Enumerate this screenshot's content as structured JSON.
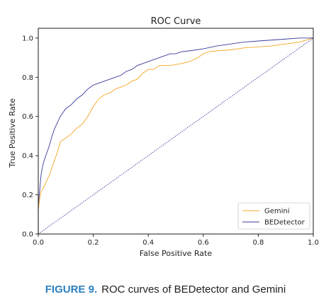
{
  "chart_data": {
    "type": "line",
    "title": "ROC Curve",
    "xlabel": "False Positive Rate",
    "ylabel": "True Positive Rate",
    "xlim": [
      0.0,
      1.0
    ],
    "ylim": [
      0.0,
      1.05
    ],
    "x_ticks": [
      "0.0",
      "0.2",
      "0.4",
      "0.6",
      "0.8",
      "1.0"
    ],
    "y_ticks": [
      "0.0",
      "0.2",
      "0.4",
      "0.6",
      "0.8",
      "1.0"
    ],
    "grid": false,
    "legend_position": "bottom-right",
    "series": [
      {
        "name": "Gemini",
        "color": "#f5a623",
        "style": "step",
        "points": [
          [
            0.0,
            0.0
          ],
          [
            0.0,
            0.12
          ],
          [
            0.005,
            0.18
          ],
          [
            0.01,
            0.215
          ],
          [
            0.02,
            0.24
          ],
          [
            0.03,
            0.27
          ],
          [
            0.04,
            0.3
          ],
          [
            0.05,
            0.34
          ],
          [
            0.06,
            0.38
          ],
          [
            0.07,
            0.42
          ],
          [
            0.08,
            0.47
          ],
          [
            0.1,
            0.49
          ],
          [
            0.12,
            0.51
          ],
          [
            0.14,
            0.54
          ],
          [
            0.16,
            0.56
          ],
          [
            0.18,
            0.6
          ],
          [
            0.2,
            0.65
          ],
          [
            0.22,
            0.69
          ],
          [
            0.24,
            0.71
          ],
          [
            0.26,
            0.72
          ],
          [
            0.28,
            0.74
          ],
          [
            0.3,
            0.75
          ],
          [
            0.32,
            0.76
          ],
          [
            0.34,
            0.78
          ],
          [
            0.36,
            0.79
          ],
          [
            0.38,
            0.82
          ],
          [
            0.4,
            0.84
          ],
          [
            0.42,
            0.84
          ],
          [
            0.44,
            0.86
          ],
          [
            0.48,
            0.86
          ],
          [
            0.52,
            0.87
          ],
          [
            0.55,
            0.88
          ],
          [
            0.58,
            0.9
          ],
          [
            0.6,
            0.92
          ],
          [
            0.62,
            0.93
          ],
          [
            0.65,
            0.935
          ],
          [
            0.7,
            0.94
          ],
          [
            0.75,
            0.95
          ],
          [
            0.8,
            0.955
          ],
          [
            0.85,
            0.96
          ],
          [
            0.9,
            0.97
          ],
          [
            0.95,
            0.98
          ],
          [
            1.0,
            1.0
          ]
        ]
      },
      {
        "name": "BEDetector",
        "color": "#3a3a9e",
        "style": "step",
        "points": [
          [
            0.0,
            0.0
          ],
          [
            0.0,
            0.15
          ],
          [
            0.005,
            0.22
          ],
          [
            0.01,
            0.3
          ],
          [
            0.015,
            0.34
          ],
          [
            0.02,
            0.37
          ],
          [
            0.03,
            0.41
          ],
          [
            0.04,
            0.45
          ],
          [
            0.05,
            0.5
          ],
          [
            0.06,
            0.54
          ],
          [
            0.07,
            0.57
          ],
          [
            0.08,
            0.6
          ],
          [
            0.1,
            0.64
          ],
          [
            0.12,
            0.66
          ],
          [
            0.14,
            0.69
          ],
          [
            0.16,
            0.71
          ],
          [
            0.18,
            0.74
          ],
          [
            0.2,
            0.76
          ],
          [
            0.22,
            0.77
          ],
          [
            0.24,
            0.78
          ],
          [
            0.26,
            0.79
          ],
          [
            0.28,
            0.8
          ],
          [
            0.3,
            0.81
          ],
          [
            0.32,
            0.83
          ],
          [
            0.34,
            0.84
          ],
          [
            0.36,
            0.86
          ],
          [
            0.38,
            0.87
          ],
          [
            0.4,
            0.88
          ],
          [
            0.42,
            0.89
          ],
          [
            0.44,
            0.9
          ],
          [
            0.46,
            0.91
          ],
          [
            0.48,
            0.92
          ],
          [
            0.5,
            0.92
          ],
          [
            0.52,
            0.93
          ],
          [
            0.55,
            0.935
          ],
          [
            0.6,
            0.945
          ],
          [
            0.65,
            0.96
          ],
          [
            0.7,
            0.97
          ],
          [
            0.75,
            0.98
          ],
          [
            0.8,
            0.985
          ],
          [
            0.85,
            0.99
          ],
          [
            0.9,
            0.995
          ],
          [
            0.95,
            1.0
          ],
          [
            1.0,
            1.0
          ]
        ]
      },
      {
        "role": "diagonal-reference",
        "color": "#3a3a9e",
        "style": "dotted",
        "points": [
          [
            0.0,
            0.0
          ],
          [
            1.0,
            1.0
          ]
        ]
      }
    ]
  },
  "caption": {
    "label": "FIGURE 9.",
    "text": "ROC curves of BEDetector and Gemini",
    "label_color": "#2a7fc0"
  }
}
